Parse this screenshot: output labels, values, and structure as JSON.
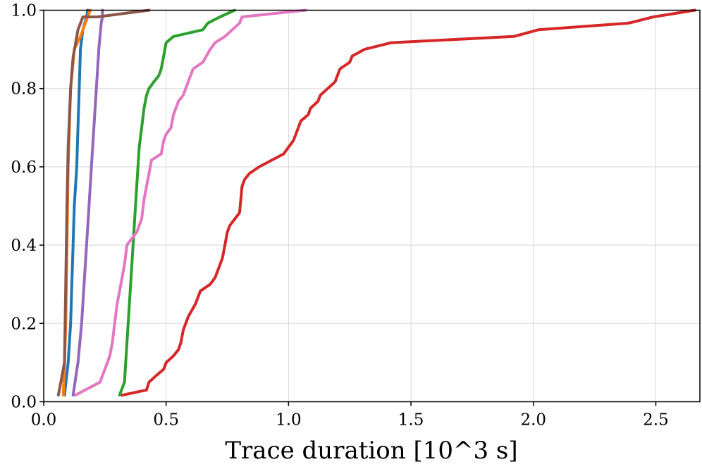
{
  "chart_data": {
    "type": "line",
    "title": "",
    "xlabel": "Trace duration [10^3 s]",
    "ylabel": "",
    "xlim": [
      0,
      2.68
    ],
    "ylim": [
      0,
      1.0
    ],
    "grid": true,
    "xticks": [
      {
        "value": 0.0,
        "label": "0.0"
      },
      {
        "value": 0.5,
        "label": "0.5"
      },
      {
        "value": 1.0,
        "label": "1.0"
      },
      {
        "value": 1.5,
        "label": "1.5"
      },
      {
        "value": 2.0,
        "label": "2.0"
      },
      {
        "value": 2.5,
        "label": "2.5"
      }
    ],
    "yticks": [
      {
        "value": 0.0,
        "label": "0.0"
      },
      {
        "value": 0.2,
        "label": "0.2"
      },
      {
        "value": 0.4,
        "label": "0.4"
      },
      {
        "value": 0.6,
        "label": "0.6"
      },
      {
        "value": 0.8,
        "label": "0.8"
      },
      {
        "value": 1.0,
        "label": "1.0"
      }
    ],
    "series": [
      {
        "name": "series-red",
        "color": "#d62728",
        "points": [
          [
            0.32,
            0.0167
          ],
          [
            0.42,
            0.03
          ],
          [
            0.43,
            0.05
          ],
          [
            0.46,
            0.067
          ],
          [
            0.49,
            0.083
          ],
          [
            0.5,
            0.1
          ],
          [
            0.53,
            0.117
          ],
          [
            0.55,
            0.133
          ],
          [
            0.56,
            0.15
          ],
          [
            0.57,
            0.183
          ],
          [
            0.58,
            0.2
          ],
          [
            0.59,
            0.217
          ],
          [
            0.62,
            0.25
          ],
          [
            0.64,
            0.283
          ],
          [
            0.68,
            0.3
          ],
          [
            0.7,
            0.317
          ],
          [
            0.72,
            0.35
          ],
          [
            0.73,
            0.367
          ],
          [
            0.74,
            0.4
          ],
          [
            0.75,
            0.433
          ],
          [
            0.76,
            0.45
          ],
          [
            0.8,
            0.483
          ],
          [
            0.81,
            0.55
          ],
          [
            0.82,
            0.567
          ],
          [
            0.84,
            0.583
          ],
          [
            0.88,
            0.6
          ],
          [
            0.98,
            0.633
          ],
          [
            1.02,
            0.667
          ],
          [
            1.04,
            0.7
          ],
          [
            1.05,
            0.717
          ],
          [
            1.08,
            0.733
          ],
          [
            1.09,
            0.75
          ],
          [
            1.12,
            0.767
          ],
          [
            1.13,
            0.783
          ],
          [
            1.16,
            0.8
          ],
          [
            1.19,
            0.817
          ],
          [
            1.21,
            0.85
          ],
          [
            1.25,
            0.867
          ],
          [
            1.26,
            0.883
          ],
          [
            1.31,
            0.9
          ],
          [
            1.42,
            0.917
          ],
          [
            1.92,
            0.933
          ],
          [
            2.02,
            0.95
          ],
          [
            2.39,
            0.967
          ],
          [
            2.49,
            0.983
          ],
          [
            2.66,
            1.0
          ]
        ]
      },
      {
        "name": "series-green",
        "color": "#2ca02c",
        "points": [
          [
            0.31,
            0.017
          ],
          [
            0.33,
            0.05
          ],
          [
            0.34,
            0.15
          ],
          [
            0.35,
            0.25
          ],
          [
            0.36,
            0.35
          ],
          [
            0.37,
            0.45
          ],
          [
            0.38,
            0.55
          ],
          [
            0.39,
            0.65
          ],
          [
            0.4,
            0.7
          ],
          [
            0.41,
            0.75
          ],
          [
            0.42,
            0.783
          ],
          [
            0.43,
            0.8
          ],
          [
            0.45,
            0.817
          ],
          [
            0.47,
            0.833
          ],
          [
            0.48,
            0.85
          ],
          [
            0.49,
            0.883
          ],
          [
            0.5,
            0.917
          ],
          [
            0.53,
            0.933
          ],
          [
            0.65,
            0.95
          ],
          [
            0.67,
            0.967
          ],
          [
            0.72,
            0.983
          ],
          [
            0.78,
            1.0
          ]
        ]
      },
      {
        "name": "series-pink",
        "color": "#e377c2",
        "points": [
          [
            0.13,
            0.017
          ],
          [
            0.23,
            0.05
          ],
          [
            0.25,
            0.083
          ],
          [
            0.27,
            0.117
          ],
          [
            0.28,
            0.15
          ],
          [
            0.29,
            0.2
          ],
          [
            0.3,
            0.25
          ],
          [
            0.31,
            0.283
          ],
          [
            0.32,
            0.317
          ],
          [
            0.33,
            0.35
          ],
          [
            0.34,
            0.4
          ],
          [
            0.36,
            0.417
          ],
          [
            0.38,
            0.433
          ],
          [
            0.4,
            0.467
          ],
          [
            0.41,
            0.517
          ],
          [
            0.42,
            0.55
          ],
          [
            0.43,
            0.583
          ],
          [
            0.44,
            0.617
          ],
          [
            0.48,
            0.633
          ],
          [
            0.49,
            0.667
          ],
          [
            0.5,
            0.683
          ],
          [
            0.52,
            0.7
          ],
          [
            0.53,
            0.733
          ],
          [
            0.55,
            0.767
          ],
          [
            0.57,
            0.783
          ],
          [
            0.59,
            0.817
          ],
          [
            0.61,
            0.85
          ],
          [
            0.65,
            0.867
          ],
          [
            0.68,
            0.9
          ],
          [
            0.7,
            0.917
          ],
          [
            0.74,
            0.933
          ],
          [
            0.77,
            0.95
          ],
          [
            0.8,
            0.967
          ],
          [
            0.81,
            0.983
          ],
          [
            1.07,
            1.0
          ]
        ]
      },
      {
        "name": "series-purple",
        "color": "#9467bd",
        "points": [
          [
            0.12,
            0.017
          ],
          [
            0.14,
            0.1
          ],
          [
            0.155,
            0.2
          ],
          [
            0.165,
            0.3
          ],
          [
            0.175,
            0.4
          ],
          [
            0.185,
            0.5
          ],
          [
            0.195,
            0.6
          ],
          [
            0.205,
            0.7
          ],
          [
            0.215,
            0.8
          ],
          [
            0.225,
            0.9
          ],
          [
            0.235,
            0.967
          ],
          [
            0.24,
            0.983
          ],
          [
            0.24,
            1.0
          ]
        ]
      },
      {
        "name": "series-blue",
        "color": "#1f77b4",
        "points": [
          [
            0.085,
            0.017
          ],
          [
            0.1,
            0.1
          ],
          [
            0.11,
            0.2
          ],
          [
            0.115,
            0.3
          ],
          [
            0.12,
            0.4
          ],
          [
            0.125,
            0.5
          ],
          [
            0.135,
            0.6
          ],
          [
            0.14,
            0.7
          ],
          [
            0.145,
            0.8
          ],
          [
            0.15,
            0.9
          ],
          [
            0.16,
            0.95
          ],
          [
            0.175,
            0.983
          ],
          [
            0.18,
            1.0
          ]
        ]
      },
      {
        "name": "series-orange",
        "color": "#ff7f0e",
        "points": [
          [
            0.08,
            0.017
          ],
          [
            0.085,
            0.1
          ],
          [
            0.09,
            0.2
          ],
          [
            0.095,
            0.4
          ],
          [
            0.1,
            0.6
          ],
          [
            0.11,
            0.8
          ],
          [
            0.125,
            0.9
          ],
          [
            0.15,
            0.933
          ],
          [
            0.16,
            0.95
          ],
          [
            0.17,
            0.967
          ],
          [
            0.18,
            0.983
          ],
          [
            0.19,
            1.0
          ]
        ]
      },
      {
        "name": "series-brown",
        "color": "#8c564b",
        "points": [
          [
            0.06,
            0.017
          ],
          [
            0.07,
            0.05
          ],
          [
            0.085,
            0.1
          ],
          [
            0.09,
            0.3
          ],
          [
            0.095,
            0.5
          ],
          [
            0.1,
            0.65
          ],
          [
            0.11,
            0.8
          ],
          [
            0.12,
            0.88
          ],
          [
            0.14,
            0.95
          ],
          [
            0.16,
            0.983
          ],
          [
            0.22,
            0.983
          ],
          [
            0.43,
            1.0
          ]
        ]
      }
    ]
  }
}
